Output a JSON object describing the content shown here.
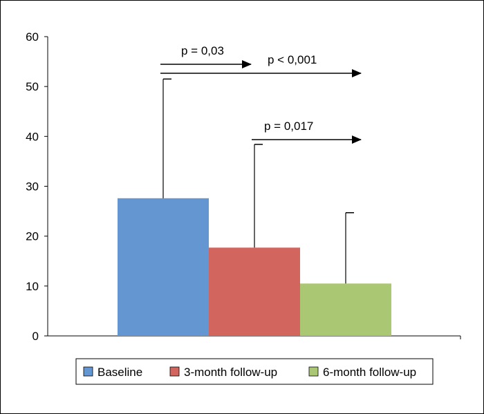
{
  "chart_data": {
    "type": "bar",
    "title": "",
    "xlabel": "",
    "ylabel": "",
    "ylim": [
      0,
      60
    ],
    "yticks": [
      "0",
      "10",
      "20",
      "30",
      "40",
      "50",
      "60"
    ],
    "grid": false,
    "legend_position": "bottom",
    "series": [
      {
        "name": "Baseline",
        "value": 27.6,
        "error_upper": 51.5,
        "color": "#6497d2"
      },
      {
        "name": "3-month follow-up",
        "value": 17.7,
        "error_upper": 38.4,
        "color": "#d2665f"
      },
      {
        "name": "6-month follow-up",
        "value": 10.5,
        "error_upper": 24.7,
        "color": "#aac873"
      }
    ],
    "annotations": [
      {
        "label": "p = 0,03",
        "from": "Baseline",
        "to": "3-month follow-up"
      },
      {
        "label": "p < 0,001",
        "from": "Baseline",
        "to": "6-month follow-up"
      },
      {
        "label": "p = 0,017",
        "from": "3-month follow-up",
        "to": "6-month follow-up"
      }
    ]
  }
}
